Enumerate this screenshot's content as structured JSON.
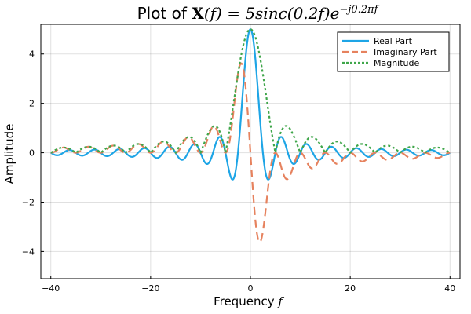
{
  "chart_data": {
    "type": "line",
    "title": {
      "prefix": "Plot of ",
      "bold_symbol": "X",
      "arg": "(f)",
      "equals": " = 5sinc(0.2f)e",
      "exponent": "−j0.2πf"
    },
    "xlabel": {
      "text": "Frequency ",
      "symbol": "f"
    },
    "ylabel": "Amplitude",
    "xlim": [
      -42,
      42
    ],
    "ylim": [
      -5.1,
      5.2
    ],
    "xticks": [
      -40,
      -20,
      0,
      20,
      40
    ],
    "xtick_labels": [
      "−40",
      "−20",
      "0",
      "20",
      "40"
    ],
    "yticks": [
      -4,
      -2,
      0,
      2,
      4
    ],
    "ytick_labels": [
      "−4",
      "−2",
      "0",
      "2",
      "4"
    ],
    "grid": true,
    "legend_position": "top-right",
    "x_domain": [
      -40,
      40
    ],
    "samples": 801,
    "formula": "X(f) = 5·sinc(0.2f)·e^(−j0.2πf)",
    "sinc_amplitude": 5,
    "sinc_scale": 0.2,
    "phase_rate": 0.6283,
    "series": [
      {
        "name": "Real Part",
        "component": "real",
        "color": "#1ea5e6",
        "style": "solid"
      },
      {
        "name": "Imaginary Part",
        "component": "imag",
        "color": "#e6825e",
        "style": "dashed"
      },
      {
        "name": "Magnitude",
        "component": "abs",
        "color": "#3fa64a",
        "style": "dotted"
      }
    ]
  }
}
